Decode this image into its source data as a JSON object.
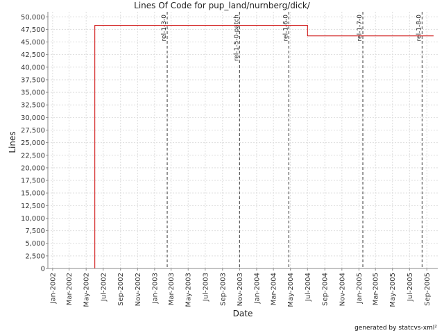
{
  "chart_data": {
    "type": "line",
    "title": "Lines Of Code for pup_land/nurnberg/dick/",
    "xlabel": "Date",
    "ylabel": "Lines",
    "ylim": [
      0,
      51000
    ],
    "xlim": [
      "2001-12-15",
      "2005-10-10"
    ],
    "grid": true,
    "legend": "none",
    "line_color": "#cc0000",
    "series": [
      {
        "step": true,
        "points": [
          {
            "x": "2002-01-05",
            "y": 0
          },
          {
            "x": "2002-06-01",
            "y": 0
          },
          {
            "x": "2002-06-01",
            "y": 48300
          },
          {
            "x": "2004-07-01",
            "y": 48300
          },
          {
            "x": "2004-07-01",
            "y": 46200
          },
          {
            "x": "2005-09-25",
            "y": 46200
          }
        ]
      }
    ],
    "y_ticks": [
      {
        "value": 0,
        "label": "0"
      },
      {
        "value": 2500,
        "label": "2,500"
      },
      {
        "value": 5000,
        "label": "5,000"
      },
      {
        "value": 7500,
        "label": "7,500"
      },
      {
        "value": 10000,
        "label": "10,000"
      },
      {
        "value": 12500,
        "label": "12,500"
      },
      {
        "value": 15000,
        "label": "15,000"
      },
      {
        "value": 17500,
        "label": "17,500"
      },
      {
        "value": 20000,
        "label": "20,000"
      },
      {
        "value": 22500,
        "label": "22,500"
      },
      {
        "value": 25000,
        "label": "25,000"
      },
      {
        "value": 27500,
        "label": "27,500"
      },
      {
        "value": 30000,
        "label": "30,000"
      },
      {
        "value": 32500,
        "label": "32,500"
      },
      {
        "value": 35000,
        "label": "35,000"
      },
      {
        "value": 37500,
        "label": "37,500"
      },
      {
        "value": 40000,
        "label": "40,000"
      },
      {
        "value": 42500,
        "label": "42,500"
      },
      {
        "value": 45000,
        "label": "45,000"
      },
      {
        "value": 47500,
        "label": "47,500"
      },
      {
        "value": 50000,
        "label": "50,000"
      }
    ],
    "x_ticks": [
      {
        "date": "2002-01-01",
        "label": "Jan-2002"
      },
      {
        "date": "2002-03-01",
        "label": "Mar-2002"
      },
      {
        "date": "2002-05-01",
        "label": "May-2002"
      },
      {
        "date": "2002-07-01",
        "label": "Jul-2002"
      },
      {
        "date": "2002-09-01",
        "label": "Sep-2002"
      },
      {
        "date": "2002-11-01",
        "label": "Nov-2002"
      },
      {
        "date": "2003-01-01",
        "label": "Jan-2003"
      },
      {
        "date": "2003-03-01",
        "label": "Mar-2003"
      },
      {
        "date": "2003-05-01",
        "label": "May-2003"
      },
      {
        "date": "2003-07-01",
        "label": "Jul-2003"
      },
      {
        "date": "2003-09-01",
        "label": "Sep-2003"
      },
      {
        "date": "2003-11-01",
        "label": "Nov-2003"
      },
      {
        "date": "2004-01-01",
        "label": "Jan-2004"
      },
      {
        "date": "2004-03-01",
        "label": "Mar-2004"
      },
      {
        "date": "2004-05-01",
        "label": "May-2004"
      },
      {
        "date": "2004-07-01",
        "label": "Jul-2004"
      },
      {
        "date": "2004-09-01",
        "label": "Sep-2004"
      },
      {
        "date": "2004-11-01",
        "label": "Nov-2004"
      },
      {
        "date": "2005-01-01",
        "label": "Jan-2005"
      },
      {
        "date": "2005-03-01",
        "label": "Mar-2005"
      },
      {
        "date": "2005-05-01",
        "label": "May-2005"
      },
      {
        "date": "2005-07-01",
        "label": "Jul-2005"
      },
      {
        "date": "2005-09-01",
        "label": "Sep-2005"
      }
    ],
    "markers": [
      {
        "date": "2003-02-15",
        "label": "rel-1-3-0"
      },
      {
        "date": "2003-11-01",
        "label": "rel-1-5-0-patch"
      },
      {
        "date": "2004-04-25",
        "label": "rel-1-6-0"
      },
      {
        "date": "2005-01-15",
        "label": "rel-1-7-0"
      },
      {
        "date": "2005-08-15",
        "label": "rel-1-8-0"
      }
    ]
  },
  "footer": "generated by statcvs-xml²"
}
